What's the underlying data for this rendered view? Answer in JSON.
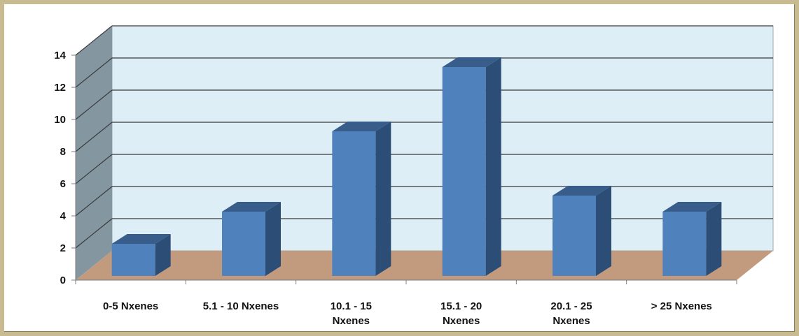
{
  "chart_data": {
    "type": "bar",
    "title": "",
    "xlabel": "",
    "ylabel": "",
    "categories": [
      [
        "0-5 Nxenes"
      ],
      [
        "5.1 - 10 Nxenes"
      ],
      [
        "10.1 - 15",
        "Nxenes"
      ],
      [
        "15.1 - 20",
        "Nxenes"
      ],
      [
        "20.1 - 25",
        "Nxenes"
      ],
      [
        "> 25 Nxenes"
      ]
    ],
    "values": [
      2,
      4,
      9,
      13,
      5,
      4
    ],
    "ylim": [
      0,
      14
    ],
    "yticks": [
      "0",
      "2",
      "4",
      "6",
      "8",
      "10",
      "12",
      "14"
    ],
    "grid": true,
    "legend": "none",
    "colors": {
      "bar_front": "#4f81bd",
      "bar_side": "#2c4d75",
      "bar_top": "#385d8a",
      "back_wall": "#ddeef6",
      "side_wall": "#8497a0",
      "floor": "#c29a7e",
      "gridline": "#3a3a3a",
      "frame_bg": "#c8bb92"
    }
  }
}
